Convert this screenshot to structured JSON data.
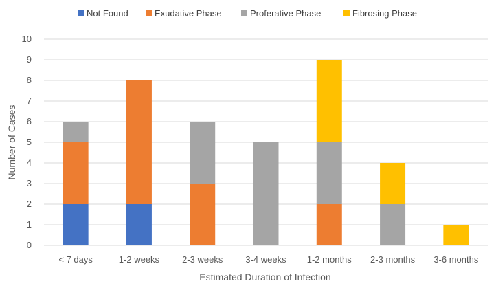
{
  "chart_data": {
    "type": "bar",
    "stacked": true,
    "title": "",
    "xlabel": "Estimated Duration of Infection",
    "ylabel": "Number of Cases",
    "ylim": [
      0,
      10
    ],
    "yticks": [
      "0",
      "1",
      "2",
      "3",
      "4",
      "5",
      "6",
      "7",
      "8",
      "9",
      "10"
    ],
    "grid": true,
    "legend_position": "top",
    "categories": [
      "< 7 days",
      "1-2 weeks",
      "2-3 weeks",
      "3-4 weeks",
      "1-2 months",
      "2-3 months",
      "3-6 months"
    ],
    "series": [
      {
        "name": "Not Found",
        "color": "#4472C4",
        "values": [
          2,
          2,
          0,
          0,
          0,
          0,
          0
        ]
      },
      {
        "name": "Exudative Phase",
        "color": "#ED7D31",
        "values": [
          3,
          6,
          3,
          0,
          2,
          0,
          0
        ]
      },
      {
        "name": "Proferative Phase",
        "color": "#A5A5A5",
        "values": [
          1,
          0,
          3,
          5,
          3,
          2,
          0
        ]
      },
      {
        "name": "Fibrosing Phase",
        "color": "#FFC000",
        "values": [
          0,
          0,
          0,
          0,
          4,
          2,
          1
        ]
      }
    ]
  }
}
